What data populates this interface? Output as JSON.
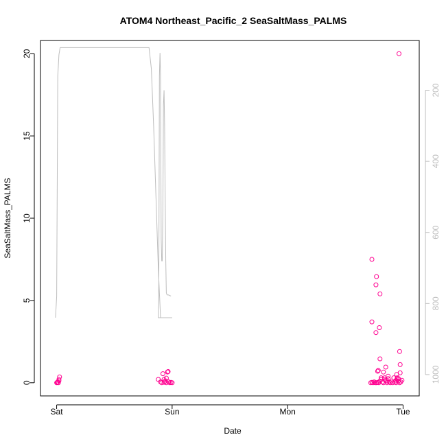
{
  "chart_data": {
    "type": "scatter",
    "title": "ATOM4 Northeast_Pacific_2 SeaSaltMass_PALMS",
    "xlabel": "Date",
    "ylabel": "SeaSaltMass_PALMS",
    "x_ticks": [
      {
        "label": "Sat",
        "value": 0
      },
      {
        "label": "Sun",
        "value": 1
      },
      {
        "label": "Mon",
        "value": 2
      },
      {
        "label": "Tue",
        "value": 3
      }
    ],
    "xlim": [
      -0.14,
      3.14
    ],
    "ylim": [
      -0.8,
      20.8
    ],
    "y_ticks": [
      0,
      5,
      10,
      15,
      20
    ],
    "y2_ticks": [
      200,
      400,
      600,
      800,
      1000
    ],
    "y2lim": [
      60,
      1060
    ],
    "y2_reversed": true,
    "grid": false,
    "colors": {
      "points": "#ff0090",
      "line": "#bdbdbd",
      "right_axis": "#bdbdbd"
    },
    "series": [
      {
        "type": "scatter",
        "points": [
          [
            0.0,
            0.0
          ],
          [
            0.01,
            0.05
          ],
          [
            0.02,
            0.12
          ],
          [
            0.02,
            0.2
          ],
          [
            0.025,
            0.35
          ],
          [
            0.015,
            0.0
          ],
          [
            0.005,
            0.02
          ],
          [
            0.88,
            0.2
          ],
          [
            0.9,
            0.05
          ],
          [
            0.91,
            0.0
          ],
          [
            0.92,
            0.55
          ],
          [
            0.93,
            0.2
          ],
          [
            0.94,
            0.1
          ],
          [
            0.95,
            0.28
          ],
          [
            0.96,
            0.65
          ],
          [
            0.965,
            0.68
          ],
          [
            0.97,
            0.05
          ],
          [
            0.98,
            0.0
          ],
          [
            0.99,
            0.02
          ],
          [
            1.0,
            0.0
          ],
          [
            0.93,
            0.03
          ],
          [
            0.95,
            0.0
          ],
          [
            2.72,
            0.0
          ],
          [
            2.73,
            0.02
          ],
          [
            2.74,
            0.0
          ],
          [
            2.75,
            0.05
          ],
          [
            2.76,
            0.0
          ],
          [
            2.77,
            0.0
          ],
          [
            2.78,
            0.02
          ],
          [
            2.79,
            0.0
          ],
          [
            2.8,
            0.1
          ],
          [
            2.81,
            0.2
          ],
          [
            2.82,
            0.05
          ],
          [
            2.83,
            0.0
          ],
          [
            2.84,
            0.3
          ],
          [
            2.85,
            0.15
          ],
          [
            2.86,
            0.0
          ],
          [
            2.87,
            0.25
          ],
          [
            2.88,
            0.05
          ],
          [
            2.89,
            0.0
          ],
          [
            2.9,
            0.1
          ],
          [
            2.91,
            0.0
          ],
          [
            2.92,
            0.3
          ],
          [
            2.93,
            0.05
          ],
          [
            2.94,
            0.0
          ],
          [
            2.95,
            0.2
          ],
          [
            2.96,
            0.1
          ],
          [
            2.97,
            0.0
          ],
          [
            2.98,
            0.05
          ],
          [
            2.99,
            0.15
          ],
          [
            2.73,
            7.5
          ],
          [
            2.73,
            3.7
          ],
          [
            2.77,
            6.45
          ],
          [
            2.765,
            5.95
          ],
          [
            2.765,
            3.05
          ],
          [
            2.8,
            5.4
          ],
          [
            2.795,
            3.35
          ],
          [
            2.8,
            1.45
          ],
          [
            2.785,
            0.75
          ],
          [
            2.78,
            0.7
          ],
          [
            2.83,
            0.65
          ],
          [
            2.85,
            0.95
          ],
          [
            2.87,
            0.4
          ],
          [
            2.945,
            0.5
          ],
          [
            2.97,
            1.9
          ],
          [
            2.975,
            1.1
          ],
          [
            2.975,
            0.6
          ],
          [
            2.965,
            20.0
          ],
          [
            2.95,
            0.3
          ],
          [
            2.96,
            0.25
          ],
          [
            2.94,
            0.15
          ],
          [
            2.84,
            0.2
          ],
          [
            2.86,
            0.1
          ],
          [
            2.81,
            0.3
          ]
        ]
      },
      {
        "type": "line",
        "points": [
          [
            -0.01,
            840
          ],
          [
            0.0,
            780
          ],
          [
            0.01,
            160
          ],
          [
            0.02,
            100
          ],
          [
            0.03,
            80
          ],
          [
            0.5,
            80
          ],
          [
            0.8,
            80
          ],
          [
            0.82,
            140
          ],
          [
            0.84,
            300
          ],
          [
            0.86,
            500
          ],
          [
            0.88,
            700
          ],
          [
            0.9,
            840
          ],
          [
            0.91,
            840
          ],
          [
            0.92,
            840
          ],
          [
            0.93,
            840
          ],
          [
            0.94,
            840
          ],
          [
            0.99,
            840
          ],
          [
            1.0,
            840
          ],
          [
            0.99,
            840
          ],
          [
            0.98,
            840
          ],
          [
            0.96,
            840
          ],
          [
            0.88,
            840
          ],
          [
            0.885,
            730
          ],
          [
            0.89,
            160
          ],
          [
            0.895,
            95
          ],
          [
            0.9,
            160
          ],
          [
            0.905,
            620
          ],
          [
            0.91,
            680
          ],
          [
            0.915,
            680
          ],
          [
            0.92,
            540
          ],
          [
            0.925,
            240
          ],
          [
            0.93,
            200
          ],
          [
            0.935,
            300
          ],
          [
            0.94,
            520
          ],
          [
            0.945,
            680
          ],
          [
            0.95,
            770
          ],
          [
            0.955,
            775
          ],
          [
            0.96,
            776
          ],
          [
            0.97,
            776
          ],
          [
            0.98,
            778
          ],
          [
            0.99,
            779
          ]
        ]
      }
    ]
  }
}
